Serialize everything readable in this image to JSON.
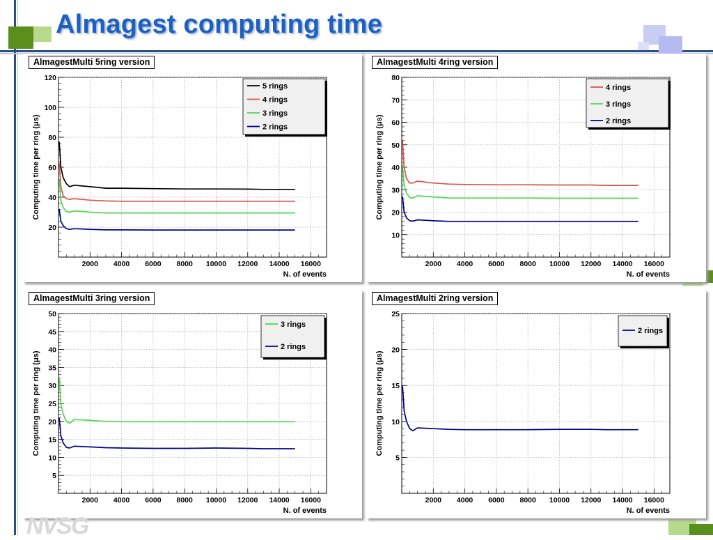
{
  "page": {
    "title": "Almagest computing time"
  },
  "footer": {
    "logo_text": "NVSG"
  },
  "chart_data": [
    {
      "type": "line",
      "title": "AlmagestMulti 5ring version",
      "xlabel": "N. of events",
      "ylabel": "Computing time per ring (μs)",
      "xlim": [
        0,
        17000
      ],
      "ylim": [
        0,
        120
      ],
      "xticks": [
        2000,
        4000,
        6000,
        8000,
        10000,
        12000,
        14000,
        16000
      ],
      "yticks": [
        20,
        40,
        60,
        80,
        100,
        120
      ],
      "grid": true,
      "legend_position": "top-right",
      "series": [
        {
          "name": "5 rings",
          "color": "#000000",
          "x": [
            50,
            150,
            300,
            500,
            700,
            1000,
            1500,
            2000,
            3000,
            4000,
            6000,
            8000,
            10000,
            12000,
            13000,
            15000
          ],
          "y": [
            77,
            60,
            53,
            49,
            47,
            48,
            47.5,
            47,
            46,
            46,
            45.7,
            45.5,
            45.5,
            45.4,
            45.2,
            45.2
          ]
        },
        {
          "name": "4 rings",
          "color": "#d9534f",
          "x": [
            50,
            150,
            300,
            500,
            700,
            1000,
            1500,
            2000,
            3000,
            4000,
            6000,
            8000,
            10000,
            12000,
            13000,
            15000
          ],
          "y": [
            63,
            47,
            41,
            39,
            38.5,
            39,
            38.5,
            38,
            37.5,
            37.3,
            37.3,
            37.3,
            37.3,
            37.3,
            37.3,
            37.3
          ]
        },
        {
          "name": "3 rings",
          "color": "#4cd94c",
          "x": [
            50,
            150,
            300,
            500,
            700,
            1000,
            1500,
            2000,
            3000,
            4000,
            6000,
            8000,
            10000,
            12000,
            13000,
            15000
          ],
          "y": [
            52,
            38,
            33,
            30.5,
            30,
            30.8,
            30.5,
            30,
            29.5,
            29.5,
            29.5,
            29.5,
            29.5,
            29.5,
            29.5,
            29.5
          ]
        },
        {
          "name": "2 rings",
          "color": "#00008b",
          "x": [
            50,
            150,
            300,
            500,
            700,
            1000,
            1500,
            2000,
            3000,
            4000,
            6000,
            8000,
            10000,
            12000,
            13000,
            15000
          ],
          "y": [
            32,
            24,
            21,
            19,
            18.5,
            19,
            18.8,
            18.5,
            18.2,
            18.2,
            18.1,
            18.1,
            18.1,
            18.1,
            18.1,
            18.1
          ]
        }
      ]
    },
    {
      "type": "line",
      "title": "AlmagestMulti 4ring version",
      "xlabel": "N. of events",
      "ylabel": "Computing time per ring (μs)",
      "xlim": [
        0,
        17000
      ],
      "ylim": [
        0,
        80
      ],
      "xticks": [
        2000,
        4000,
        6000,
        8000,
        10000,
        12000,
        14000,
        16000
      ],
      "yticks": [
        10,
        20,
        30,
        40,
        50,
        60,
        70,
        80
      ],
      "grid": true,
      "legend_position": "top-right",
      "series": [
        {
          "name": "4 rings",
          "color": "#d9534f",
          "x": [
            50,
            150,
            300,
            500,
            700,
            1000,
            1500,
            2000,
            3000,
            4000,
            6000,
            8000,
            10000,
            12000,
            13000,
            15000
          ],
          "y": [
            52,
            40,
            35,
            33,
            33,
            33.8,
            33.4,
            33,
            32.5,
            32.3,
            32.2,
            32.2,
            32.1,
            32.1,
            31.9,
            31.9
          ]
        },
        {
          "name": "3 rings",
          "color": "#4cd94c",
          "x": [
            50,
            150,
            300,
            500,
            700,
            1000,
            1500,
            2000,
            3000,
            4000,
            6000,
            8000,
            10000,
            12000,
            13000,
            15000
          ],
          "y": [
            41,
            32,
            28.5,
            26.5,
            26.3,
            27.3,
            27,
            26.8,
            26.3,
            26.3,
            26.3,
            26.3,
            26.2,
            26.2,
            26.2,
            26.2
          ]
        },
        {
          "name": "2 rings",
          "color": "#00008b",
          "x": [
            50,
            150,
            300,
            500,
            700,
            1000,
            1500,
            2000,
            3000,
            4000,
            6000,
            8000,
            10000,
            12000,
            13000,
            15000
          ],
          "y": [
            27,
            20,
            17.5,
            16.2,
            16,
            16.6,
            16.4,
            16.2,
            15.9,
            15.9,
            15.9,
            15.9,
            15.9,
            15.9,
            15.9,
            15.9
          ]
        }
      ]
    },
    {
      "type": "line",
      "title": "AlmagestMulti 3ring version",
      "xlabel": "N. of events",
      "ylabel": "Computing time per ring (μs)",
      "xlim": [
        0,
        17000
      ],
      "ylim": [
        0,
        50
      ],
      "xticks": [
        2000,
        4000,
        6000,
        8000,
        10000,
        12000,
        14000,
        16000
      ],
      "yticks": [
        5,
        10,
        15,
        20,
        25,
        30,
        35,
        40,
        45,
        50
      ],
      "grid": true,
      "legend_position": "top-right",
      "series": [
        {
          "name": "3 rings",
          "color": "#4cd94c",
          "x": [
            50,
            150,
            300,
            500,
            700,
            1000,
            1500,
            2000,
            3000,
            4000,
            6000,
            8000,
            10000,
            12000,
            13000,
            15000
          ],
          "y": [
            32,
            25,
            22,
            20,
            19.5,
            20.5,
            20.4,
            20.3,
            20,
            19.9,
            19.9,
            19.9,
            19.9,
            19.9,
            19.9,
            19.9
          ]
        },
        {
          "name": "2 rings",
          "color": "#00008b",
          "x": [
            50,
            150,
            300,
            500,
            700,
            1000,
            1500,
            2000,
            3000,
            4000,
            6000,
            8000,
            10000,
            12000,
            13000,
            15000
          ],
          "y": [
            21,
            16,
            14,
            12.8,
            12.6,
            13.1,
            13,
            12.9,
            12.7,
            12.6,
            12.5,
            12.5,
            12.6,
            12.5,
            12.4,
            12.4
          ]
        }
      ]
    },
    {
      "type": "line",
      "title": "AlmagestMulti 2ring version",
      "xlabel": "N. of events",
      "ylabel": "Computing time per ring (μs)",
      "xlim": [
        0,
        17000
      ],
      "ylim": [
        0,
        25
      ],
      "xticks": [
        2000,
        4000,
        6000,
        8000,
        10000,
        12000,
        14000,
        16000
      ],
      "yticks": [
        5,
        10,
        15,
        20,
        25
      ],
      "grid": true,
      "legend_position": "top-right",
      "series": [
        {
          "name": "2 rings",
          "color": "#00008b",
          "x": [
            50,
            150,
            300,
            500,
            700,
            1000,
            1500,
            2000,
            3000,
            4000,
            6000,
            8000,
            10000,
            12000,
            13000,
            15000
          ],
          "y": [
            15,
            11.5,
            10,
            9,
            8.7,
            9.1,
            9.05,
            9,
            8.9,
            8.85,
            8.85,
            8.85,
            8.9,
            8.9,
            8.85,
            8.85
          ]
        }
      ]
    }
  ]
}
